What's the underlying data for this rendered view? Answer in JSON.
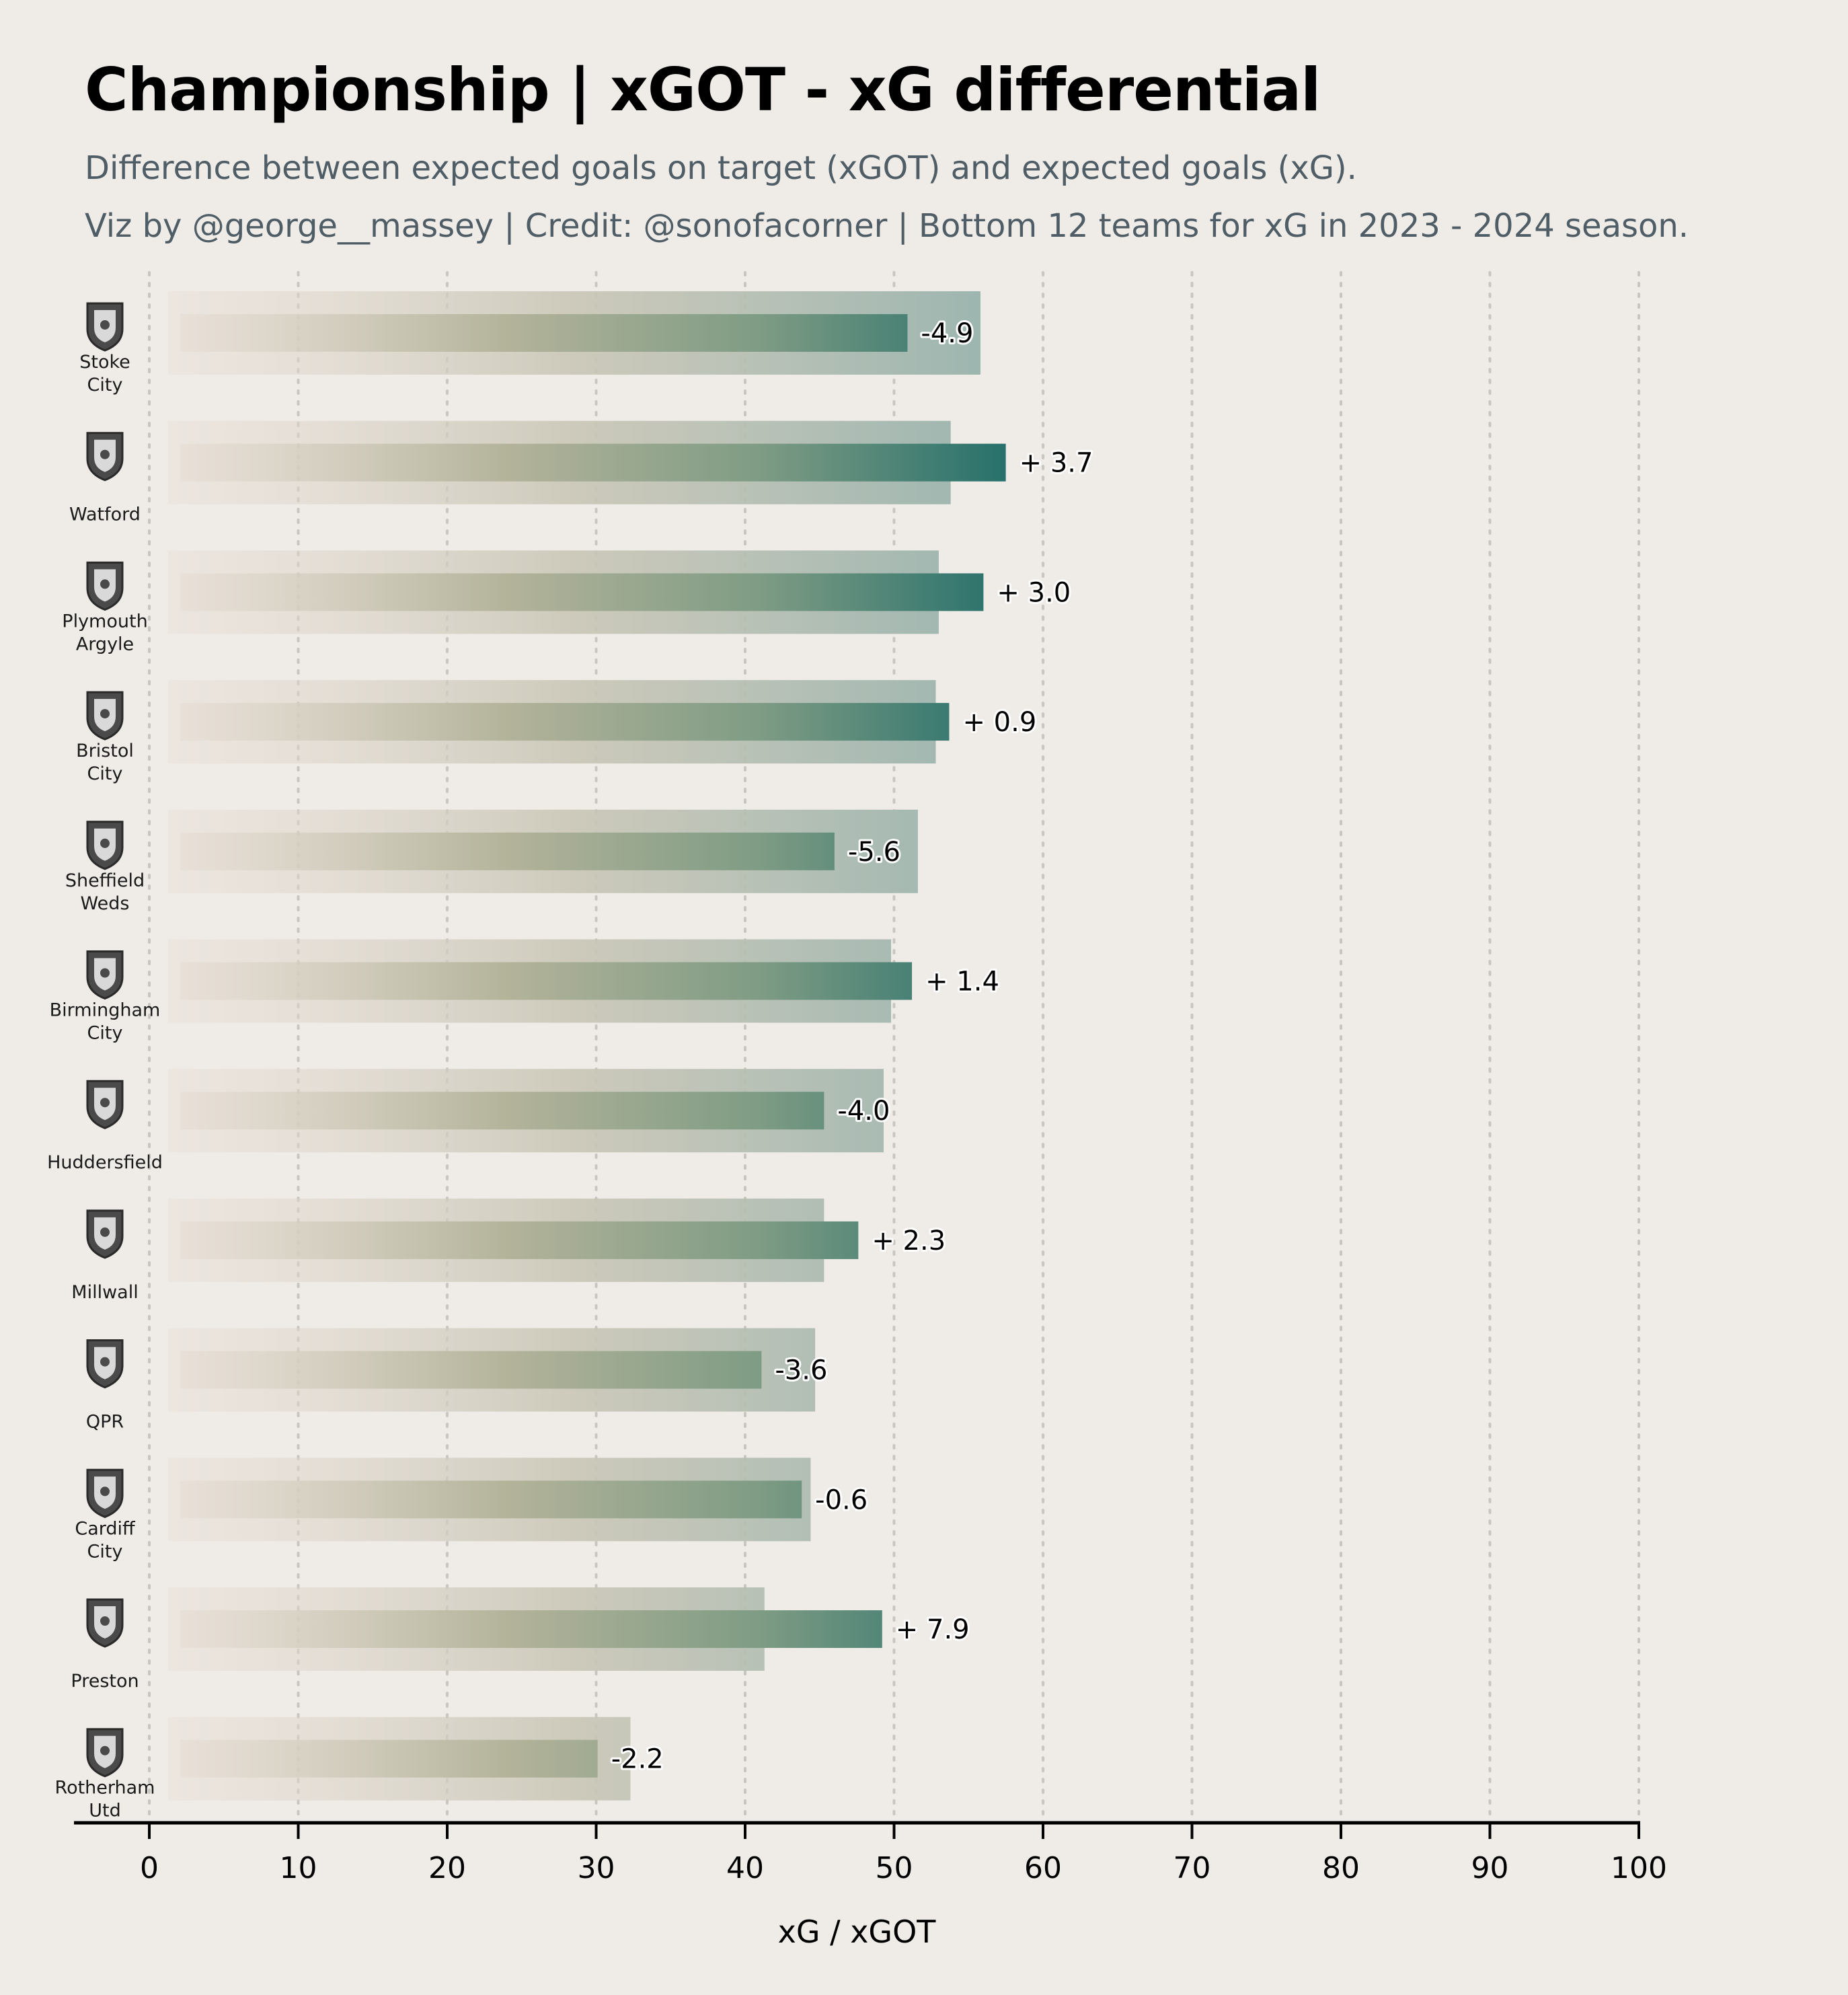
{
  "title": "Championship | xGOT - xG differential",
  "subtitle": "Difference between expected goals on target (xGOT) and expected goals (xG).",
  "credit": "Viz by @george__massey | Credit: @sonofacorner | Bottom 12 teams for xG in 2023 - 2024 season.",
  "colors": {
    "background": "#efebe7",
    "bar_start": "#e6dcd2",
    "bar_mid": "#b3b39a",
    "bar_end": "#26706b",
    "grid": "#c8c4c0"
  },
  "chart_data": {
    "type": "bar",
    "orientation": "horizontal",
    "xlabel": "xG / xGOT",
    "xlim": [
      0,
      100
    ],
    "xticks": [
      0,
      10,
      20,
      30,
      40,
      50,
      60,
      70,
      80,
      90,
      100
    ],
    "grid": "vertical dotted",
    "categories": [
      {
        "name": "Stoke City",
        "lines": [
          "Stoke",
          "City"
        ],
        "icon": "stoke-city-crest-icon"
      },
      {
        "name": "Watford",
        "lines": [
          "Watford"
        ],
        "icon": "watford-crest-icon"
      },
      {
        "name": "Plymouth Argyle",
        "lines": [
          "Plymouth",
          "Argyle"
        ],
        "icon": "plymouth-argyle-crest-icon"
      },
      {
        "name": "Bristol City",
        "lines": [
          "Bristol",
          "City"
        ],
        "icon": "bristol-city-crest-icon"
      },
      {
        "name": "Sheffield Weds",
        "lines": [
          "Sheffield",
          "Weds"
        ],
        "icon": "sheffield-weds-crest-icon"
      },
      {
        "name": "Birmingham City",
        "lines": [
          "Birmingham",
          "City"
        ],
        "icon": "birmingham-city-crest-icon"
      },
      {
        "name": "Huddersfield",
        "lines": [
          "Huddersfield"
        ],
        "icon": "huddersfield-crest-icon"
      },
      {
        "name": "Millwall",
        "lines": [
          "Millwall"
        ],
        "icon": "millwall-crest-icon"
      },
      {
        "name": "QPR",
        "lines": [
          "QPR"
        ],
        "icon": "qpr-crest-icon"
      },
      {
        "name": "Cardiff City",
        "lines": [
          "Cardiff",
          "City"
        ],
        "icon": "cardiff-city-crest-icon"
      },
      {
        "name": "Preston",
        "lines": [
          "Preston"
        ],
        "icon": "preston-crest-icon"
      },
      {
        "name": "Rotherham Utd",
        "lines": [
          "Rotherham",
          "Utd"
        ],
        "icon": "rotherham-utd-crest-icon"
      }
    ],
    "series": [
      {
        "key": "xg",
        "values": [
          55.8,
          53.8,
          53.0,
          52.8,
          51.6,
          49.8,
          49.3,
          45.3,
          44.7,
          44.4,
          41.3,
          32.3
        ]
      },
      {
        "key": "xgot",
        "values": [
          50.9,
          57.5,
          56.0,
          53.7,
          46.0,
          51.2,
          45.3,
          47.6,
          41.1,
          43.8,
          49.2,
          30.1
        ]
      }
    ],
    "differential_labels": [
      "-4.9",
      "+ 3.7",
      "+ 3.0",
      "+ 0.9",
      "-5.6",
      "+ 1.4",
      "-4.0",
      "+ 2.3",
      "-3.6",
      "-0.6",
      "+ 7.9",
      "-2.2"
    ]
  }
}
